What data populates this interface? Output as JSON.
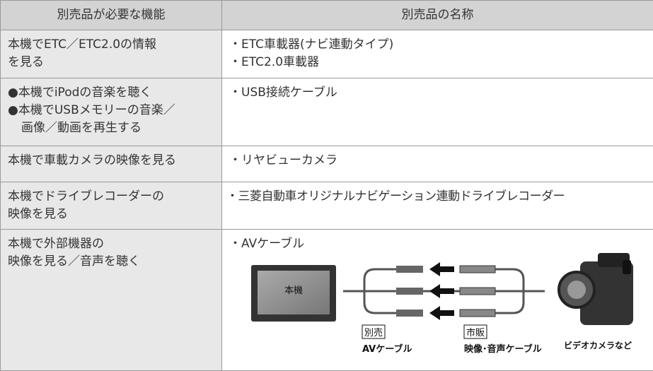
{
  "table": {
    "header": [
      "別売品が必要な機能",
      "別売品の名称"
    ],
    "rows": [
      {
        "function": [
          "本機でETC／ETC2.0の情報",
          "を見る"
        ],
        "items": [
          "・ETC車載器(ナビ連動タイプ)",
          "・ETC2.0車載器"
        ]
      },
      {
        "function": [
          "●本機でiPodの音楽を聴く",
          "●本機でUSBメモリーの音楽／",
          "画像／動画を再生する"
        ],
        "items": [
          "・USB接続ケーブル"
        ]
      },
      {
        "function": [
          "本機で車載カメラの映像を見る"
        ],
        "items": [
          "・リヤビューカメラ"
        ]
      },
      {
        "function": [
          "本機でドライブレコーダーの",
          "映像を見る"
        ],
        "items": [
          "・三菱自動車オリジナルナビゲーション連動ドライブレコーダー"
        ]
      },
      {
        "function": [
          "本機で外部機器の",
          "映像を見る／音声を聴く"
        ],
        "items": [
          "・AVケーブル"
        ]
      }
    ]
  },
  "diagram": {
    "unit": "本機",
    "sold_separately": "別売",
    "av_cable": "AVケーブル",
    "commercial": "市販",
    "av_audio_cable": "映像･音声ケーブル",
    "video_camera": "ビデオカメラなど"
  }
}
